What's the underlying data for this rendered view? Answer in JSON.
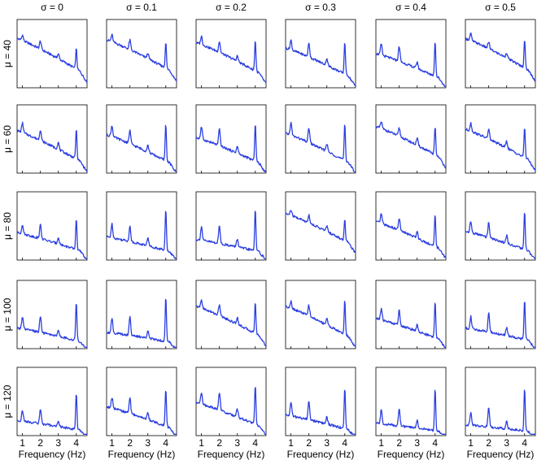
{
  "chart_data": {
    "type": "line",
    "layout": "small-multiples grid (5 rows x 6 columns)",
    "column_labels": [
      "σ = 0",
      "σ = 0.1",
      "σ = 0.2",
      "σ = 0.3",
      "σ = 0.4",
      "σ = 0.5"
    ],
    "row_labels": [
      "μ = 40",
      "μ = 60",
      "μ = 80",
      "μ = 100",
      "μ = 120"
    ],
    "xlabel": "Frequency (Hz)",
    "x_ticks": [
      "1",
      "2",
      "3",
      "4"
    ],
    "xlim": [
      0.7,
      4.6
    ],
    "y_ticks_shown": false,
    "line_color": "#2b3fe0",
    "peak_frequencies_hz": [
      1,
      2,
      3,
      4
    ],
    "panels": [
      {
        "row": 0,
        "col": 0,
        "base_start": 0.72,
        "base_end": 0.18,
        "peaks": [
          0.08,
          0.12,
          0.07,
          0.3
        ]
      },
      {
        "row": 0,
        "col": 1,
        "base_start": 0.7,
        "base_end": 0.2,
        "peaks": [
          0.1,
          0.14,
          0.08,
          0.38
        ]
      },
      {
        "row": 0,
        "col": 2,
        "base_start": 0.66,
        "base_end": 0.16,
        "peaks": [
          0.12,
          0.16,
          0.08,
          0.45
        ]
      },
      {
        "row": 0,
        "col": 3,
        "base_start": 0.58,
        "base_end": 0.12,
        "peaks": [
          0.14,
          0.2,
          0.1,
          0.48
        ]
      },
      {
        "row": 0,
        "col": 4,
        "base_start": 0.5,
        "base_end": 0.1,
        "peaks": [
          0.16,
          0.22,
          0.1,
          0.52
        ]
      },
      {
        "row": 0,
        "col": 5,
        "base_start": 0.72,
        "base_end": 0.2,
        "peaks": [
          0.1,
          0.1,
          0.08,
          0.42
        ]
      },
      {
        "row": 1,
        "col": 0,
        "base_start": 0.62,
        "base_end": 0.12,
        "peaks": [
          0.14,
          0.16,
          0.1,
          0.44
        ]
      },
      {
        "row": 1,
        "col": 1,
        "base_start": 0.56,
        "base_end": 0.1,
        "peaks": [
          0.16,
          0.2,
          0.1,
          0.55
        ]
      },
      {
        "row": 1,
        "col": 2,
        "base_start": 0.52,
        "base_end": 0.1,
        "peaks": [
          0.18,
          0.24,
          0.1,
          0.56
        ]
      },
      {
        "row": 1,
        "col": 3,
        "base_start": 0.58,
        "base_end": 0.1,
        "peaks": [
          0.18,
          0.22,
          0.12,
          0.55
        ]
      },
      {
        "row": 1,
        "col": 4,
        "base_start": 0.68,
        "base_end": 0.18,
        "peaks": [
          0.1,
          0.12,
          0.1,
          0.42
        ]
      },
      {
        "row": 1,
        "col": 5,
        "base_start": 0.64,
        "base_end": 0.14,
        "peaks": [
          0.12,
          0.14,
          0.1,
          0.45
        ]
      },
      {
        "row": 2,
        "col": 0,
        "base_start": 0.4,
        "base_end": 0.1,
        "peaks": [
          0.14,
          0.2,
          0.1,
          0.45
        ]
      },
      {
        "row": 2,
        "col": 1,
        "base_start": 0.34,
        "base_end": 0.1,
        "peaks": [
          0.2,
          0.22,
          0.12,
          0.6
        ]
      },
      {
        "row": 2,
        "col": 2,
        "base_start": 0.3,
        "base_end": 0.1,
        "peaks": [
          0.2,
          0.26,
          0.12,
          0.62
        ]
      },
      {
        "row": 2,
        "col": 3,
        "base_start": 0.68,
        "base_end": 0.2,
        "peaks": [
          0.08,
          0.12,
          0.08,
          0.32
        ]
      },
      {
        "row": 2,
        "col": 4,
        "base_start": 0.56,
        "base_end": 0.12,
        "peaks": [
          0.14,
          0.18,
          0.1,
          0.48
        ]
      },
      {
        "row": 2,
        "col": 5,
        "base_start": 0.42,
        "base_end": 0.1,
        "peaks": [
          0.16,
          0.22,
          0.12,
          0.55
        ]
      },
      {
        "row": 3,
        "col": 0,
        "base_start": 0.3,
        "base_end": 0.08,
        "peaks": [
          0.18,
          0.24,
          0.1,
          0.58
        ]
      },
      {
        "row": 3,
        "col": 1,
        "base_start": 0.24,
        "base_end": 0.08,
        "peaks": [
          0.22,
          0.28,
          0.12,
          0.65
        ]
      },
      {
        "row": 3,
        "col": 2,
        "base_start": 0.62,
        "base_end": 0.14,
        "peaks": [
          0.12,
          0.16,
          0.1,
          0.45
        ]
      },
      {
        "row": 3,
        "col": 3,
        "base_start": 0.62,
        "base_end": 0.12,
        "peaks": [
          0.1,
          0.16,
          0.1,
          0.5
        ]
      },
      {
        "row": 3,
        "col": 4,
        "base_start": 0.44,
        "base_end": 0.1,
        "peaks": [
          0.16,
          0.22,
          0.1,
          0.55
        ]
      },
      {
        "row": 3,
        "col": 5,
        "base_start": 0.3,
        "base_end": 0.1,
        "peaks": [
          0.18,
          0.28,
          0.12,
          0.58
        ]
      },
      {
        "row": 4,
        "col": 0,
        "base_start": 0.22,
        "base_end": 0.06,
        "peaks": [
          0.16,
          0.22,
          0.08,
          0.55
        ]
      },
      {
        "row": 4,
        "col": 1,
        "base_start": 0.42,
        "base_end": 0.08,
        "peaks": [
          0.16,
          0.22,
          0.1,
          0.55
        ]
      },
      {
        "row": 4,
        "col": 2,
        "base_start": 0.48,
        "base_end": 0.1,
        "peaks": [
          0.18,
          0.26,
          0.12,
          0.58
        ]
      },
      {
        "row": 4,
        "col": 3,
        "base_start": 0.3,
        "base_end": 0.06,
        "peaks": [
          0.2,
          0.28,
          0.1,
          0.6
        ]
      },
      {
        "row": 4,
        "col": 4,
        "base_start": 0.18,
        "base_end": 0.05,
        "peaks": [
          0.2,
          0.26,
          0.12,
          0.62
        ]
      },
      {
        "row": 4,
        "col": 5,
        "base_start": 0.16,
        "base_end": 0.05,
        "peaks": [
          0.18,
          0.28,
          0.12,
          0.62
        ]
      }
    ]
  }
}
